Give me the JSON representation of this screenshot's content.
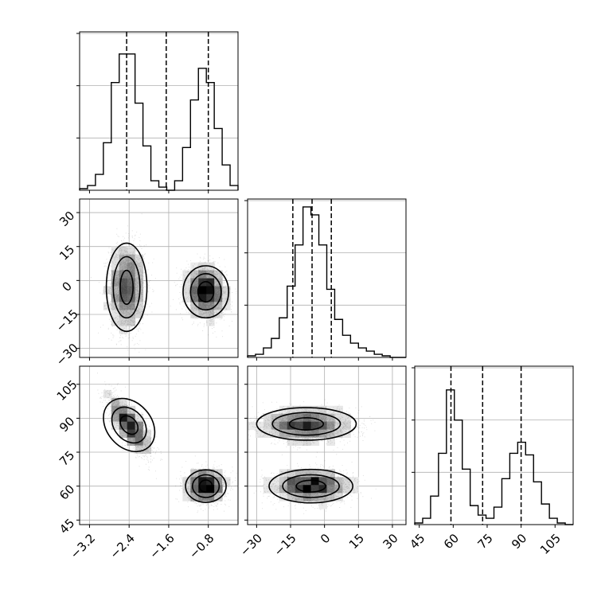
{
  "chart_data": {
    "type": "corner",
    "title": "",
    "parameters": [
      {
        "index": 0,
        "range": [
          -3.4,
          -0.2
        ],
        "ticks": [
          -3.2,
          -2.4,
          -1.6,
          -0.8
        ],
        "tick_labels": [
          "−3.2",
          "−2.4",
          "−1.6",
          "−0.8"
        ],
        "quantiles": [
          -2.45,
          -1.65,
          -0.8
        ],
        "histogram": {
          "bin_start": -3.4,
          "bin_width": 0.16,
          "counts": [
            0.01,
            0.03,
            0.1,
            0.3,
            0.68,
            0.86,
            0.86,
            0.55,
            0.28,
            0.06,
            0.02,
            0.0,
            0.06,
            0.27,
            0.57,
            0.77,
            0.68,
            0.39,
            0.16,
            0.03
          ]
        }
      },
      {
        "index": 1,
        "range": [
          -34,
          36
        ],
        "ticks": [
          -30,
          -15,
          0,
          15,
          30
        ],
        "tick_labels": [
          "−30",
          "−15",
          "0",
          "15",
          "30"
        ],
        "quantiles": [
          -14,
          -5.5,
          3
        ],
        "histogram": {
          "bin_start": -34,
          "bin_width": 3.5,
          "counts": [
            0.01,
            0.02,
            0.06,
            0.12,
            0.25,
            0.45,
            0.71,
            0.95,
            0.9,
            0.71,
            0.43,
            0.24,
            0.14,
            0.09,
            0.06,
            0.04,
            0.02,
            0.01,
            0.0,
            0.0
          ]
        }
      },
      {
        "index": 2,
        "range": [
          43,
          113
        ],
        "ticks": [
          45,
          60,
          75,
          90,
          105
        ],
        "tick_labels": [
          "45",
          "60",
          "75",
          "90",
          "105"
        ],
        "quantiles": [
          59,
          73,
          90
        ],
        "histogram": {
          "bin_start": 43,
          "bin_width": 3.5,
          "counts": [
            0.01,
            0.04,
            0.18,
            0.45,
            0.85,
            0.66,
            0.35,
            0.12,
            0.06,
            0.04,
            0.11,
            0.29,
            0.45,
            0.52,
            0.44,
            0.27,
            0.13,
            0.04,
            0.01,
            0.0
          ]
        }
      }
    ],
    "pairs": [
      {
        "x_param": 0,
        "y_param": 1,
        "clusters": [
          {
            "mean": [
              -2.45,
              -3
            ],
            "sd": [
              0.18,
              9.5
            ],
            "rho": 0.0,
            "n": 2200
          },
          {
            "mean": [
              -0.85,
              -5
            ],
            "sd": [
              0.2,
              5.5
            ],
            "rho": -0.1,
            "n": 2200
          }
        ],
        "contours": [
          {
            "cx": -2.45,
            "cy": -3,
            "levels": [
              [
                0.41,
                19.5
              ],
              [
                0.27,
                13.5
              ],
              [
                0.13,
                7.5
              ]
            ],
            "angle": 0
          },
          {
            "cx": -0.85,
            "cy": -5,
            "levels": [
              [
                0.46,
                11.5
              ],
              [
                0.31,
                8
              ],
              [
                0.16,
                4.5
              ]
            ],
            "angle": 0
          }
        ]
      },
      {
        "x_param": 0,
        "y_param": 2,
        "clusters": [
          {
            "mean": [
              -2.4,
              87
            ],
            "sd": [
              0.2,
              6
            ],
            "rho": -0.75,
            "n": 2200
          },
          {
            "mean": [
              -0.85,
              60
            ],
            "sd": [
              0.19,
              3.5
            ],
            "rho": 0.0,
            "n": 2200
          }
        ],
        "contours": [
          {
            "cx": -2.4,
            "cy": 87,
            "levels": [
              [
                0.45,
                13
              ],
              [
                0.3,
                8.8
              ],
              [
                0.15,
                4.6
              ]
            ],
            "angle": -0.72
          },
          {
            "cx": -0.85,
            "cy": 60,
            "levels": [
              [
                0.41,
                7.2
              ],
              [
                0.27,
                5
              ],
              [
                0.13,
                2.7
              ]
            ],
            "angle": 0
          }
        ]
      },
      {
        "x_param": 1,
        "y_param": 2,
        "clusters": [
          {
            "mean": [
              -8,
              87
            ],
            "sd": [
              10,
              3.5
            ],
            "rho": 0.0,
            "n": 2200
          },
          {
            "mean": [
              -6,
              60
            ],
            "sd": [
              8.5,
              3.5
            ],
            "rho": 0.0,
            "n": 2200
          }
        ],
        "contours": [
          {
            "cx": -8,
            "cy": 87.5,
            "levels": [
              [
                22,
                7.2
              ],
              [
                15,
                5
              ],
              [
                7.5,
                2.7
              ]
            ],
            "angle": 0
          },
          {
            "cx": -6,
            "cy": 60,
            "levels": [
              [
                18.5,
                7.4
              ],
              [
                12.5,
                5
              ],
              [
                6.5,
                2.6
              ]
            ],
            "angle": 0
          }
        ]
      }
    ],
    "grid": true,
    "quantile_lines": "dashed"
  }
}
